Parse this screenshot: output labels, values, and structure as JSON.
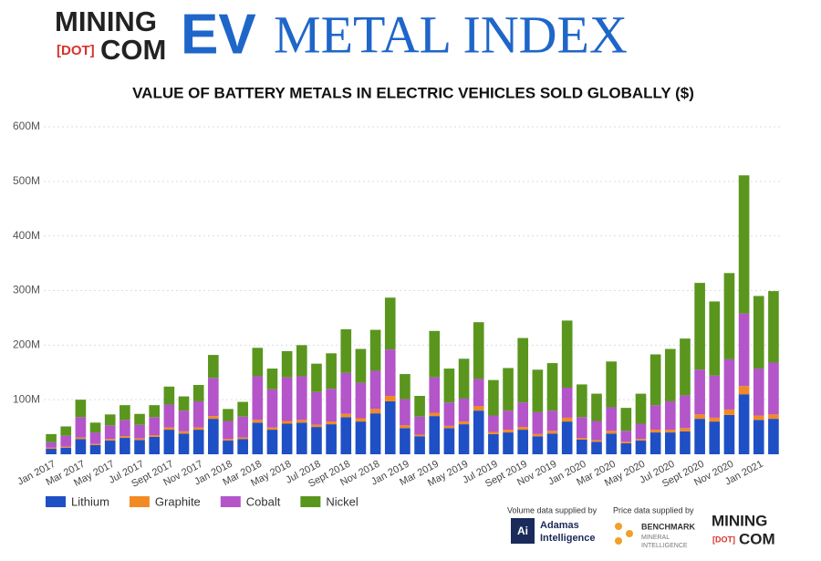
{
  "header": {
    "brand_top": "MINING",
    "brand_dot": "[DOT]",
    "brand_bottom": "COM",
    "ev": "EV",
    "index": "METAL INDEX"
  },
  "chart_data": {
    "type": "stacked_bar",
    "title": "VALUE OF BATTERY METALS IN ELECTRIC VEHICLES SOLD GLOBALLY ($)",
    "categories": [
      "Jan 2017",
      null,
      "Mar 2017",
      null,
      "May 2017",
      null,
      "Jul 2017",
      null,
      "Sept 2017",
      null,
      "Nov 2017",
      null,
      "Jan 2018",
      null,
      "Mar 2018",
      null,
      "May 2018",
      null,
      "Jul 2018",
      null,
      "Sept 2018",
      null,
      "Nov 2018",
      null,
      "Jan 2019",
      null,
      "Mar 2019",
      null,
      "May 2019",
      null,
      "Jul 2019",
      null,
      "Sept 2019",
      null,
      "Nov 2019",
      null,
      "Jan 2020",
      null,
      "Mar 2020",
      null,
      "May 2020",
      null,
      "Jul 2020",
      null,
      "Sept 2020",
      null,
      "Nov 2020",
      null,
      "Jan 2021",
      null
    ],
    "series": [
      {
        "name": "Lithium",
        "color": "#1f4fc4",
        "values": [
          10,
          12,
          28,
          17,
          25,
          30,
          26,
          32,
          45,
          38,
          45,
          65,
          25,
          28,
          58,
          45,
          56,
          58,
          50,
          55,
          68,
          60,
          75,
          97,
          48,
          33,
          70,
          48,
          55,
          80,
          37,
          40,
          45,
          33,
          38,
          60,
          27,
          23,
          38,
          20,
          25,
          40,
          40,
          42,
          65,
          60,
          72,
          110,
          63,
          65
        ]
      },
      {
        "name": "Graphite",
        "color": "#f28a24",
        "values": [
          2,
          2,
          3,
          2,
          3,
          3,
          3,
          3,
          4,
          4,
          4,
          5,
          3,
          3,
          5,
          4,
          5,
          5,
          4,
          5,
          6,
          6,
          8,
          10,
          5,
          3,
          6,
          4,
          5,
          8,
          4,
          5,
          5,
          4,
          5,
          7,
          3,
          3,
          5,
          3,
          3,
          5,
          5,
          6,
          8,
          7,
          10,
          15,
          8,
          8
        ]
      },
      {
        "name": "Cobalt",
        "color": "#b455c9",
        "values": [
          10,
          20,
          37,
          21,
          25,
          30,
          25,
          33,
          42,
          38,
          48,
          70,
          33,
          38,
          80,
          70,
          80,
          80,
          60,
          60,
          75,
          65,
          70,
          85,
          48,
          33,
          65,
          43,
          42,
          50,
          30,
          35,
          45,
          40,
          37,
          55,
          38,
          35,
          43,
          20,
          28,
          45,
          52,
          60,
          82,
          77,
          92,
          133,
          86,
          95
        ]
      },
      {
        "name": "Nickel",
        "color": "#5a961e",
        "values": [
          15,
          17,
          32,
          18,
          20,
          27,
          20,
          22,
          33,
          26,
          30,
          42,
          22,
          27,
          52,
          38,
          48,
          57,
          52,
          65,
          80,
          62,
          75,
          95,
          46,
          38,
          85,
          62,
          73,
          104,
          65,
          78,
          118,
          78,
          87,
          123,
          60,
          50,
          84,
          42,
          55,
          93,
          96,
          104,
          159,
          136,
          158,
          253,
          133,
          131
        ]
      }
    ],
    "ylim": [
      0,
      600
    ],
    "yticks": [
      {
        "value": 100,
        "label": "100M"
      },
      {
        "value": 200,
        "label": "200M"
      },
      {
        "value": 300,
        "label": "300M"
      },
      {
        "value": 400,
        "label": "400M"
      },
      {
        "value": 500,
        "label": "500M"
      },
      {
        "value": 600,
        "label": "600M"
      }
    ],
    "grid": true,
    "legend": "bottom-left"
  },
  "footer": {
    "volume_note": "Volume data supplied by",
    "adamas_icon": "Ai",
    "adamas_1": "Adamas",
    "adamas_2": "Intelligence",
    "price_note": "Price data supplied by",
    "benchmark": "BENCHMARK",
    "benchmark_sub1": "MINERAL",
    "benchmark_sub2": "INTELLIGENCE",
    "brand_top": "MINING",
    "brand_dot": "[DOT]",
    "brand_bottom": "COM"
  }
}
